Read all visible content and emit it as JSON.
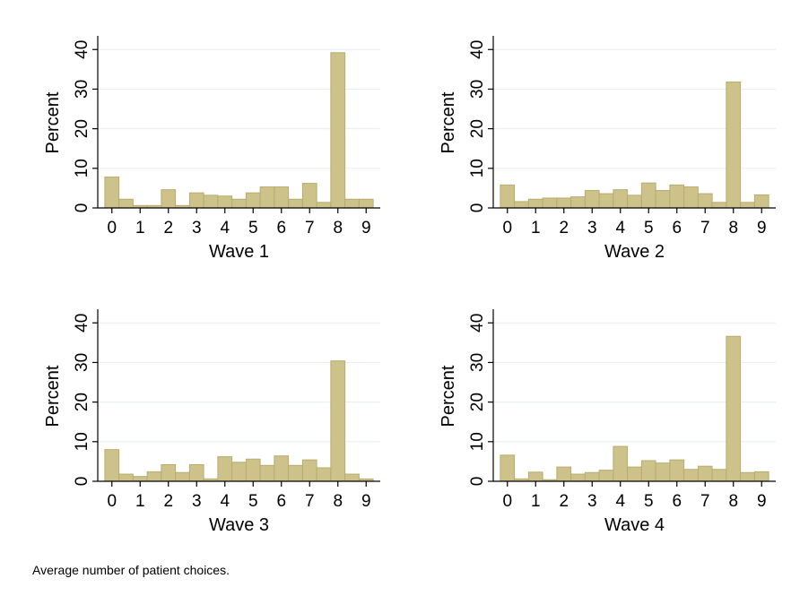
{
  "caption": "Average number of patient choices.",
  "chart_data": [
    {
      "type": "bar",
      "title": "",
      "xlabel": "Wave 1",
      "ylabel": "Percent",
      "xlim": [
        -0.5,
        9.5
      ],
      "ylim": [
        0,
        43
      ],
      "bin_width": 0.5,
      "x_ticks": [
        "0",
        "1",
        "2",
        "3",
        "4",
        "5",
        "6",
        "7",
        "8",
        "9"
      ],
      "y_ticks": [
        "0",
        "10",
        "20",
        "30",
        "40"
      ],
      "grid": true,
      "bin_starts": [
        -0.25,
        0.25,
        0.75,
        1.25,
        1.75,
        2.25,
        2.75,
        3.25,
        3.75,
        4.25,
        4.75,
        5.25,
        5.75,
        6.25,
        6.75,
        7.25,
        7.75,
        8.25,
        8.75
      ],
      "values": [
        7.8,
        2.2,
        0.6,
        0.6,
        4.6,
        0.6,
        3.8,
        3.2,
        3.0,
        2.2,
        3.8,
        5.3,
        5.3,
        2.2,
        6.2,
        1.4,
        39.2,
        2.2,
        2.2
      ]
    },
    {
      "type": "bar",
      "title": "",
      "xlabel": "Wave 2",
      "ylabel": "Percent",
      "xlim": [
        -0.5,
        9.5
      ],
      "ylim": [
        0,
        43
      ],
      "bin_width": 0.5,
      "x_ticks": [
        "0",
        "1",
        "2",
        "3",
        "4",
        "5",
        "6",
        "7",
        "8",
        "9"
      ],
      "y_ticks": [
        "0",
        "10",
        "20",
        "30",
        "40"
      ],
      "grid": true,
      "bin_starts": [
        -0.25,
        0.25,
        0.75,
        1.25,
        1.75,
        2.25,
        2.75,
        3.25,
        3.75,
        4.25,
        4.75,
        5.25,
        5.75,
        6.25,
        6.75,
        7.25,
        7.75,
        8.25,
        8.75
      ],
      "values": [
        5.8,
        1.6,
        2.2,
        2.5,
        2.5,
        2.8,
        4.4,
        3.6,
        4.6,
        3.2,
        6.3,
        4.4,
        5.8,
        5.3,
        3.6,
        1.4,
        31.8,
        1.4,
        3.3
      ]
    },
    {
      "type": "bar",
      "title": "",
      "xlabel": "Wave 3",
      "ylabel": "Percent",
      "xlim": [
        -0.5,
        9.5
      ],
      "ylim": [
        0,
        43
      ],
      "bin_width": 0.5,
      "x_ticks": [
        "0",
        "1",
        "2",
        "3",
        "4",
        "5",
        "6",
        "7",
        "8",
        "9"
      ],
      "y_ticks": [
        "0",
        "10",
        "20",
        "30",
        "40"
      ],
      "grid": true,
      "bin_starts": [
        -0.25,
        0.25,
        0.75,
        1.25,
        1.75,
        2.25,
        2.75,
        3.25,
        3.75,
        4.25,
        4.75,
        5.25,
        5.75,
        6.25,
        6.75,
        7.25,
        7.75,
        8.25,
        8.75
      ],
      "values": [
        8.0,
        1.8,
        1.2,
        2.4,
        4.2,
        2.2,
        4.2,
        0.6,
        6.2,
        4.8,
        5.6,
        4.0,
        6.4,
        4.0,
        5.4,
        3.4,
        30.4,
        1.8,
        0.6
      ]
    },
    {
      "type": "bar",
      "title": "",
      "xlabel": "Wave 4",
      "ylabel": "Percent",
      "xlim": [
        -0.5,
        9.5
      ],
      "ylim": [
        0,
        43
      ],
      "bin_width": 0.5,
      "x_ticks": [
        "0",
        "1",
        "2",
        "3",
        "4",
        "5",
        "6",
        "7",
        "8",
        "9"
      ],
      "y_ticks": [
        "0",
        "10",
        "20",
        "30",
        "40"
      ],
      "grid": true,
      "bin_starts": [
        -0.25,
        0.25,
        0.75,
        1.25,
        1.75,
        2.25,
        2.75,
        3.25,
        3.75,
        4.25,
        4.75,
        5.25,
        5.75,
        6.25,
        6.75,
        7.25,
        7.75,
        8.25,
        8.75
      ],
      "values": [
        6.6,
        0.6,
        2.3,
        0.4,
        3.6,
        1.8,
        2.2,
        2.8,
        8.8,
        3.6,
        5.2,
        4.6,
        5.4,
        3.0,
        3.8,
        3.0,
        36.6,
        2.2,
        2.4
      ]
    }
  ]
}
